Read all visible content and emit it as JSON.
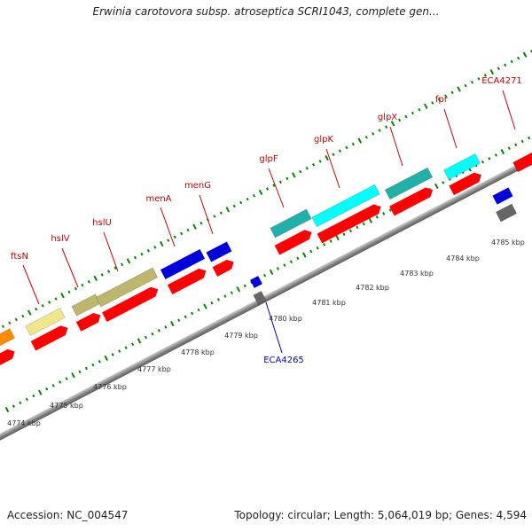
{
  "title": "Erwinia carotovora subsp. atroseptica SCRI1043, complete gen...",
  "footer": {
    "accession": "Accession: NC_004547",
    "topology": "Topology: circular; Length: 5,064,019 bp; Genes: 4,594"
  },
  "colors": {
    "backbone": "#8a8a8a",
    "cds_red": "#ff0000",
    "gene_label_upper": "#cc0000",
    "gene_label_lower": "#0000cc",
    "tick": "#008800",
    "gene_cyan": "#00ffff",
    "gene_teal": "#20b2aa",
    "gene_blue": "#0000dd",
    "gene_khaki": "#bdb76b",
    "gene_lightyellow": "#f0e68c",
    "gene_orange": "#ff8c00",
    "gene_gray": "#666666"
  },
  "scale_labels": [
    "4774 kbp",
    "4775 kbp",
    "4776 kbp",
    "4777 kbp",
    "4778 kbp",
    "4779 kbp",
    "4780 kbp",
    "4781 kbp",
    "4782 kbp",
    "4783 kbp",
    "4784 kbp",
    "4785 kbp"
  ],
  "gene_labels_upper": [
    "ftsN",
    "hslV",
    "hslU",
    "menA",
    "menG",
    "glpF",
    "glpK",
    "glpX",
    "fpr",
    "ECA4271"
  ],
  "gene_labels_lower": [
    "ECA4265"
  ]
}
